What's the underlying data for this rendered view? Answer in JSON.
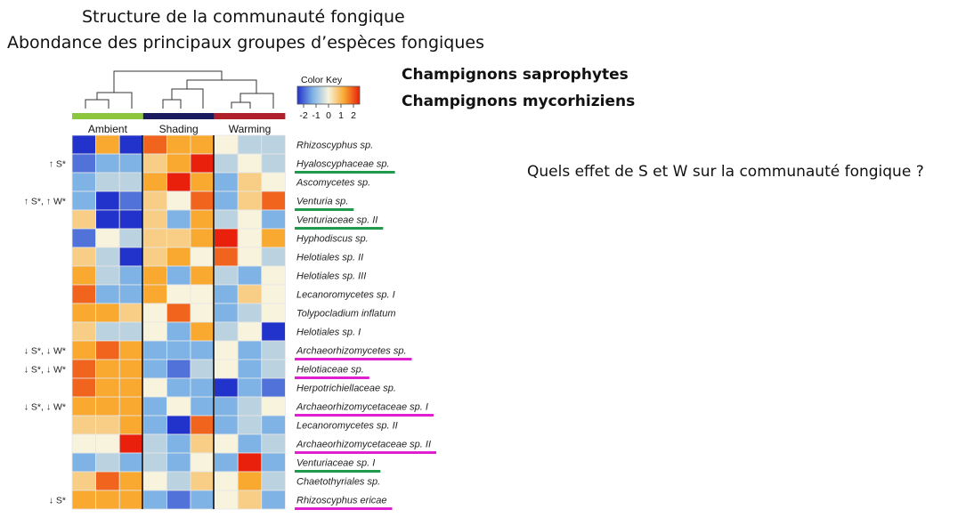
{
  "title_line1": "Structure de la communauté fongique",
  "title_line2": "Abondance des principaux groupes d’espèces fongiques",
  "legend": {
    "saprophytes": "Champignons saprophytes",
    "mycorrhizal": "Champignons mycorhiziens",
    "saprophytes_color": "#5b8a3a",
    "mycorrhizal_color": "#e020d0"
  },
  "question": "Quels effet de S et W sur la communauté fongique ?",
  "color_key": {
    "title": "Color Key",
    "ticks": [
      "-2",
      "-1",
      "0",
      "1",
      "2"
    ]
  },
  "chart_data": {
    "type": "heatmap",
    "groups": [
      {
        "name": "Ambient",
        "color": "#8cc63f"
      },
      {
        "name": "Shading",
        "color": "#1a1a5e"
      },
      {
        "name": "Warming",
        "color": "#b0202a"
      }
    ],
    "rows": [
      {
        "species": "Rhizoscyphus sp.",
        "annotation": "",
        "underline": "",
        "values": [
          -2,
          1,
          -2,
          1.5,
          1,
          1,
          0,
          -0.5,
          -0.5
        ]
      },
      {
        "species": "Hyaloscyphaceae sp.",
        "annotation": "↑ S*",
        "underline": "saprophytes",
        "values": [
          -1.5,
          -1,
          -1,
          0.5,
          1,
          2,
          -0.5,
          0,
          -0.5
        ]
      },
      {
        "species": "Ascomycetes sp.",
        "annotation": "",
        "underline": "",
        "values": [
          -1,
          -0.5,
          -0.5,
          1,
          2,
          1,
          -1,
          0.5,
          0
        ]
      },
      {
        "species": "Venturia sp.",
        "annotation": "↑ S*, ↑ W*",
        "underline": "saprophytes",
        "values": [
          -1,
          -2,
          -1.5,
          0.5,
          0,
          1.5,
          -1,
          0.5,
          1.5
        ]
      },
      {
        "species": "Venturiaceae sp. II",
        "annotation": "",
        "underline": "saprophytes",
        "values": [
          0.5,
          -2,
          -2,
          0.5,
          -1,
          1,
          -0.5,
          0,
          -1
        ]
      },
      {
        "species": "Hyphodiscus sp.",
        "annotation": "",
        "underline": "",
        "values": [
          -1.5,
          0,
          -0.5,
          0.5,
          0.5,
          1,
          2,
          0,
          1
        ]
      },
      {
        "species": "Helotiales sp. II",
        "annotation": "",
        "underline": "",
        "values": [
          0.5,
          -0.5,
          -2,
          0.5,
          1,
          0,
          1.5,
          0,
          -0.5
        ]
      },
      {
        "species": "Helotiales sp. III",
        "annotation": "",
        "underline": "",
        "values": [
          1,
          -0.5,
          -1,
          1,
          -1,
          1,
          -0.5,
          -1,
          0
        ]
      },
      {
        "species": "Lecanoromycetes sp. I",
        "annotation": "",
        "underline": "",
        "values": [
          1.5,
          -1,
          -1,
          1,
          0,
          0,
          -1,
          0.5,
          0
        ]
      },
      {
        "species": "Tolypocladium inflatum",
        "annotation": "",
        "underline": "",
        "values": [
          1,
          1,
          0.5,
          0,
          1.5,
          0,
          -1,
          -0.5,
          0
        ]
      },
      {
        "species": "Helotiales sp. I",
        "annotation": "",
        "underline": "",
        "values": [
          0.5,
          -0.5,
          -0.5,
          0,
          -1,
          1,
          -0.5,
          0,
          -2
        ]
      },
      {
        "species": "Archaeorhizomycetes sp.",
        "annotation": "↓ S*, ↓ W*",
        "underline": "mycorrhizal",
        "values": [
          1,
          1.5,
          1,
          -1,
          -1,
          -1,
          0,
          -1,
          -0.5
        ]
      },
      {
        "species": "Helotiaceae sp.",
        "annotation": "↓ S*, ↓ W*",
        "underline": "mycorrhizal",
        "values": [
          1.5,
          1,
          1,
          -1,
          -1.5,
          -0.5,
          0,
          -1,
          -0.5
        ]
      },
      {
        "species": "Herpotrichiellaceae sp.",
        "annotation": "",
        "underline": "",
        "values": [
          1.5,
          1,
          1,
          0,
          -1,
          -1,
          -2,
          -1,
          -1.5
        ]
      },
      {
        "species": "Archaeorhizomycetaceae sp. I",
        "annotation": "↓ S*, ↓ W*",
        "underline": "mycorrhizal",
        "values": [
          1,
          1,
          1,
          -1,
          0,
          -1,
          -1,
          -0.5,
          0
        ]
      },
      {
        "species": "Lecanoromycetes sp. II",
        "annotation": "",
        "underline": "",
        "values": [
          0.5,
          0.5,
          1,
          -1,
          -2,
          1.5,
          -1,
          -0.5,
          -1
        ]
      },
      {
        "species": "Archaeorhizomycetaceae sp. II",
        "annotation": "",
        "underline": "mycorrhizal",
        "values": [
          0,
          0,
          2,
          -0.5,
          -1,
          0.5,
          0,
          -1,
          -0.5
        ]
      },
      {
        "species": "Venturiaceae sp. I",
        "annotation": "",
        "underline": "saprophytes",
        "values": [
          -1,
          -0.5,
          -1,
          -0.5,
          -1,
          0,
          -1,
          2,
          -1
        ]
      },
      {
        "species": "Chaetothyriales sp.",
        "annotation": "",
        "underline": "",
        "values": [
          0.5,
          1.5,
          1,
          0,
          -0.5,
          0.5,
          0,
          1,
          -0.5
        ]
      },
      {
        "species": "Rhizoscyphus ericae",
        "annotation": "↓ S*",
        "underline": "mycorrhizal",
        "values": [
          1,
          1,
          1,
          -1,
          -1.5,
          -1,
          0,
          0.5,
          -1
        ]
      }
    ],
    "scale_range": [
      -2,
      2
    ]
  }
}
